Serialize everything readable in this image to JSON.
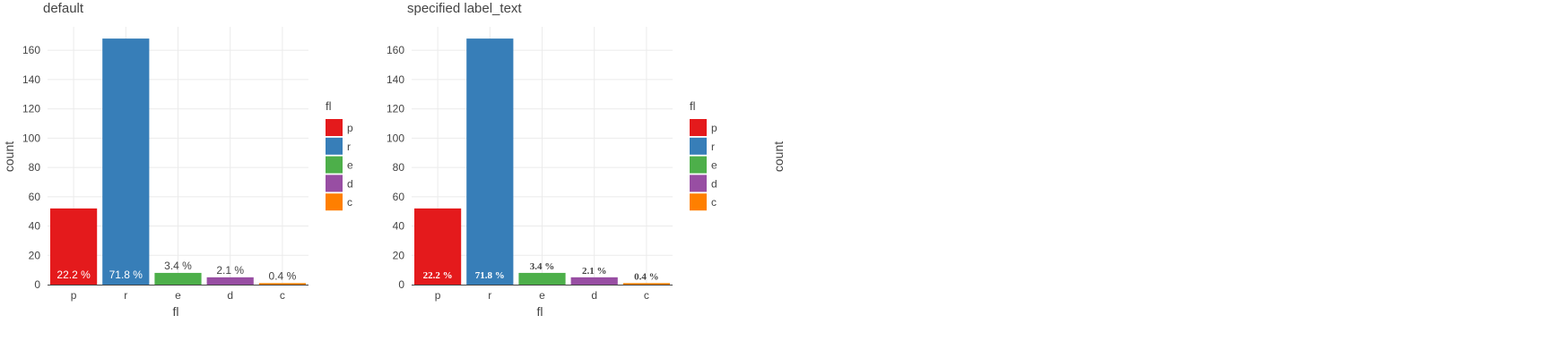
{
  "chart_data": [
    {
      "type": "bar",
      "title": "default",
      "xlabel": "fl",
      "ylabel": "count",
      "categories": [
        "p",
        "r",
        "e",
        "d",
        "c"
      ],
      "values": [
        52,
        168,
        8,
        5,
        1
      ],
      "colors": [
        "#e41a1c",
        "#377eb8",
        "#4daf4a",
        "#984ea3",
        "#ff7f00"
      ],
      "bar_labels": [
        "22.2 %",
        "71.8 %",
        "3.4 %",
        "2.1 %",
        "0.4 %"
      ],
      "yticks": [
        0,
        20,
        40,
        60,
        80,
        100,
        120,
        140,
        160
      ],
      "ylim": [
        0,
        176
      ],
      "grid": true,
      "legend": {
        "title": "fl",
        "placement": "right",
        "entries": [
          "p",
          "r",
          "e",
          "d",
          "c"
        ]
      },
      "label_style": "default"
    },
    {
      "type": "bar",
      "title": "specified label_text",
      "xlabel": "fl",
      "ylabel": "count",
      "categories": [
        "p",
        "r",
        "e",
        "d",
        "c"
      ],
      "values": [
        52,
        168,
        8,
        5,
        1
      ],
      "colors": [
        "#e41a1c",
        "#377eb8",
        "#4daf4a",
        "#984ea3",
        "#ff7f00"
      ],
      "bar_labels": [
        "22.2 %",
        "71.8 %",
        "3.4 %",
        "2.1 %",
        "0.4 %"
      ],
      "yticks": [
        0,
        20,
        40,
        60,
        80,
        100,
        120,
        140,
        160
      ],
      "ylim": [
        0,
        176
      ],
      "grid": true,
      "legend": {
        "title": "fl",
        "placement": "right",
        "entries": [
          "p",
          "r",
          "e",
          "d",
          "c"
        ]
      },
      "label_style": "custom"
    }
  ]
}
